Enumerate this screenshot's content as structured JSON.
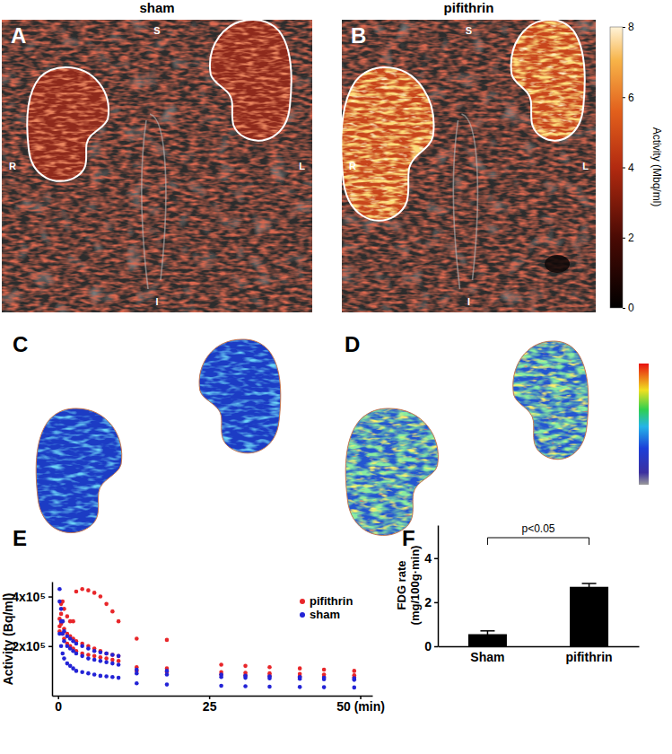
{
  "images": {
    "panels": [
      {
        "label": "A",
        "title": "sham",
        "orientation": {
          "superior": "S",
          "inferior": "I",
          "right": "R",
          "left": "L"
        }
      },
      {
        "label": "B",
        "title": "pifithrin",
        "orientation": {
          "superior": "S",
          "inferior": "I",
          "right": "R",
          "left": "L"
        }
      }
    ],
    "colorbar": {
      "label": "Activity (Mbq/ml)",
      "range": [
        0,
        8
      ],
      "ticks": [
        0,
        2,
        4,
        6,
        8
      ]
    }
  },
  "maps": {
    "panels": [
      {
        "label": "C"
      },
      {
        "label": "D"
      }
    ]
  },
  "chart_data": [
    {
      "type": "scatter",
      "panel": "E",
      "ylabel": "Activity (Bq/ml)",
      "xlim": [
        -1,
        52
      ],
      "xticks": [
        0,
        25,
        {
          "value": 50,
          "label": "50 (min)"
        }
      ],
      "ylim": [
        0,
        460000
      ],
      "yticks": [
        {
          "value": 200000,
          "label": "2x10⁵"
        },
        {
          "value": 400000,
          "label": "4x10⁵"
        }
      ],
      "legend": "upper right",
      "marker": "circle",
      "series": [
        {
          "name": "pifithrin",
          "color": "#e8262a",
          "x": [
            0.25,
            0.5,
            0.75,
            1,
            1.5,
            2,
            2.5,
            3,
            4,
            5,
            6,
            7,
            8,
            9,
            10,
            13,
            18,
            27,
            31,
            35,
            40,
            44,
            49,
            0.25,
            0.5,
            0.75,
            1,
            1.5,
            2,
            2.5,
            3,
            4,
            5,
            6,
            7,
            8,
            9,
            10,
            13,
            18,
            27,
            31,
            35,
            40,
            44,
            49,
            0.25,
            0.5,
            0.75,
            1,
            1.5,
            2,
            2.5,
            3,
            4,
            5,
            6,
            7,
            8,
            9,
            10,
            13,
            18,
            27,
            31,
            35,
            40,
            44,
            49
          ],
          "values": [
            310000,
            370000,
            380000,
            350000,
            320000,
            300000,
            300000,
            420000,
            430000,
            425000,
            415000,
            400000,
            370000,
            340000,
            300000,
            230000,
            225000,
            125000,
            120000,
            115000,
            110000,
            105000,
            100000,
            280000,
            330000,
            300000,
            270000,
            250000,
            240000,
            230000,
            220000,
            210000,
            200000,
            190000,
            180000,
            170000,
            165000,
            160000,
            115000,
            110000,
            95000,
            92000,
            90000,
            88000,
            85000,
            82000,
            260000,
            290000,
            250000,
            230000,
            210000,
            200000,
            190000,
            180000,
            170000,
            165000,
            160000,
            155000,
            150000,
            145000,
            140000,
            100000,
            95000,
            85000,
            82000,
            80000,
            78000,
            76000,
            74000
          ]
        },
        {
          "name": "sham",
          "color": "#2323d6",
          "x": [
            0.25,
            0.5,
            0.75,
            1,
            1.5,
            2,
            2.5,
            3,
            4,
            5,
            6,
            7,
            8,
            9,
            10,
            13,
            18,
            27,
            31,
            35,
            40,
            44,
            49,
            0.25,
            0.5,
            0.75,
            1,
            1.5,
            2,
            2.5,
            3,
            4,
            5,
            6,
            7,
            8,
            9,
            10,
            13,
            18,
            27,
            31,
            35,
            40,
            44,
            49,
            0.25,
            0.5,
            0.75,
            1,
            1.5,
            2,
            2.5,
            3,
            4,
            5,
            6,
            7,
            8,
            9,
            10,
            13,
            18,
            27,
            31,
            35,
            40,
            44,
            49
          ],
          "values": [
            430000,
            350000,
            300000,
            260000,
            240000,
            230000,
            220000,
            210000,
            200000,
            190000,
            180000,
            175000,
            170000,
            165000,
            160000,
            105000,
            100000,
            85000,
            80000,
            78000,
            75000,
            72000,
            70000,
            380000,
            300000,
            250000,
            220000,
            200000,
            190000,
            180000,
            170000,
            160000,
            150000,
            145000,
            140000,
            135000,
            130000,
            125000,
            90000,
            85000,
            75000,
            72000,
            70000,
            68000,
            66000,
            64000,
            250000,
            200000,
            170000,
            150000,
            130000,
            120000,
            110000,
            100000,
            95000,
            90000,
            85000,
            80000,
            78000,
            75000,
            72000,
            50000,
            45000,
            40000,
            38000,
            36000,
            35000,
            34000,
            33000
          ]
        }
      ]
    },
    {
      "type": "bar",
      "panel": "F",
      "ylabel": "FDG rate (mg/100g·min)",
      "categories": [
        "Sham",
        "pifithrin"
      ],
      "values": [
        0.55,
        2.7
      ],
      "errors": [
        0.15,
        0.15
      ],
      "color": "#000000",
      "ylim": [
        0,
        5.5
      ],
      "yticks": [
        0,
        2,
        4
      ],
      "annotations": [
        "p<0.05"
      ]
    }
  ]
}
